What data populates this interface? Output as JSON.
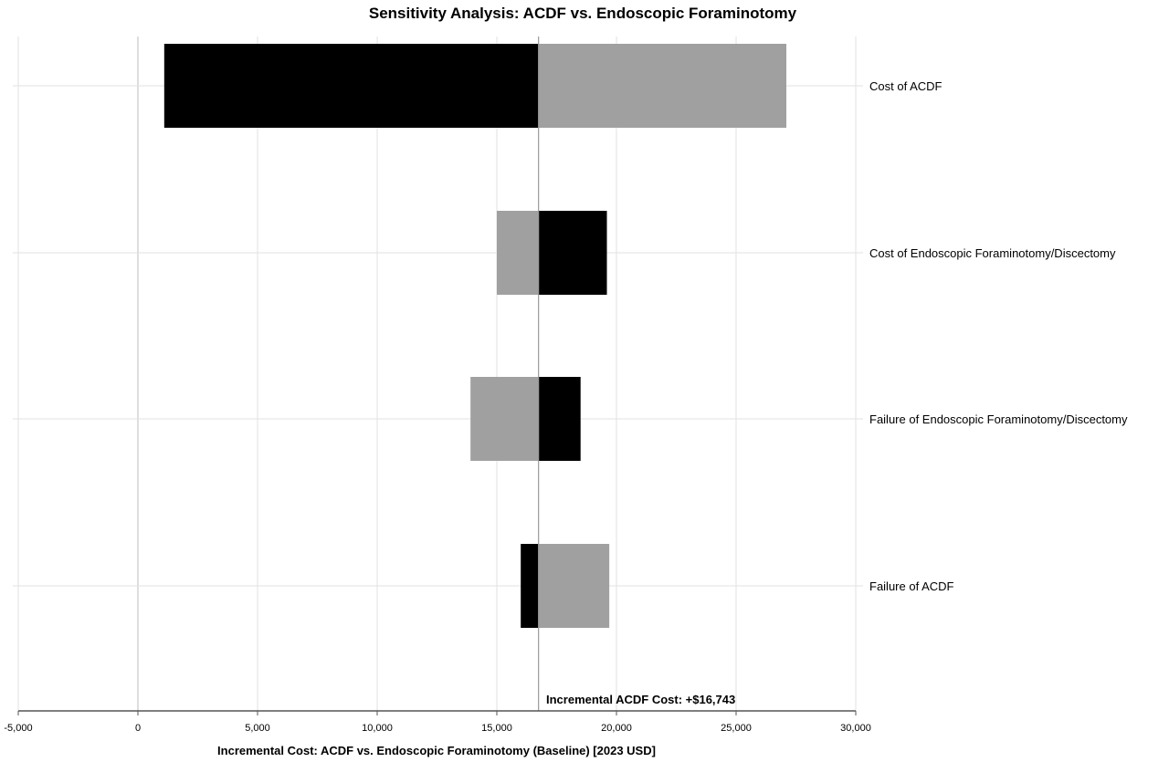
{
  "chart_data": {
    "type": "bar",
    "subtype": "tornado",
    "title": "Sensitivity Analysis: ACDF vs. Endoscopic Foraminotomy",
    "xlabel": "Incremental Cost: ACDF vs. Endoscopic Foraminotomy (Baseline) [2023 USD]",
    "ylabel": "",
    "xlim": [
      -5000,
      30000
    ],
    "xticks": [
      -5000,
      0,
      5000,
      10000,
      15000,
      20000,
      25000,
      30000
    ],
    "xtick_labels": [
      "-5,000",
      "0",
      "5,000",
      "10,000",
      "15,000",
      "20,000",
      "25,000",
      "30,000"
    ],
    "grid": true,
    "baseline": 16743,
    "annotation": "Incremental ACDF Cost: +$16,743",
    "colors": {
      "black_bar": "#000000",
      "gray_bar": "#a0a0a0",
      "grid": "#e2e2e2",
      "axis": "#555555"
    },
    "categories": [
      "Cost of ACDF",
      "Cost of Endoscopic Foraminotomy/Discectomy",
      "Failure of Endoscopic Foraminotomy/Discectomy",
      "Failure of ACDF"
    ],
    "series": [
      {
        "color": "#000000",
        "values": [
          1100,
          19600,
          18500,
          16000
        ]
      },
      {
        "color": "#a0a0a0",
        "values": [
          27100,
          15000,
          13900,
          19700
        ]
      }
    ]
  }
}
